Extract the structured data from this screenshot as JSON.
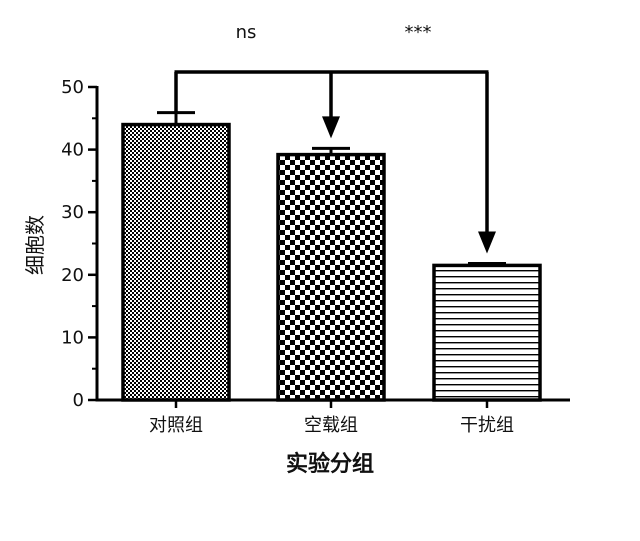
{
  "chart_data": {
    "type": "bar",
    "categories": [
      "对照组",
      "空载组",
      "干扰组"
    ],
    "values": [
      44,
      39.2,
      21.5
    ],
    "errors": [
      1.9,
      1.0,
      0.3
    ],
    "xlabel": "实验分组",
    "ylabel": "细胞数",
    "ylim": [
      0,
      50
    ],
    "yticks": [
      0,
      10,
      20,
      30,
      40,
      50
    ],
    "grid": false,
    "bar_patterns": [
      "fine-checker",
      "coarse-checker",
      "horizontal-lines"
    ],
    "comparisons": [
      {
        "from": "对照组",
        "to": "空载组",
        "label": "ns"
      },
      {
        "from": "对照组",
        "to": "干扰组",
        "label": "***"
      }
    ],
    "colors": {
      "ink": "#000000",
      "background": "#ffffff"
    }
  }
}
